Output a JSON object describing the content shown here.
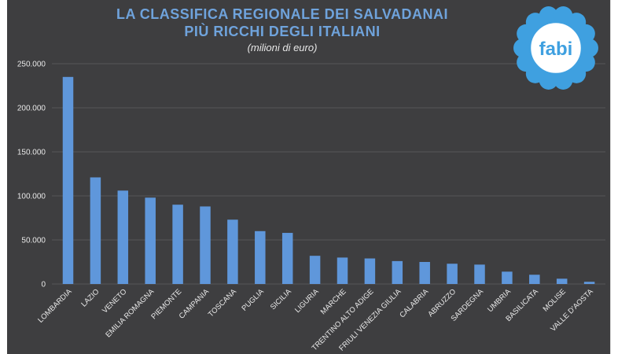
{
  "header": {
    "title_line1": "LA CLASSIFICA REGIONALE DEI SALVADANAI",
    "title_line2": "PIÙ RICCHI DEGLI ITALIANI",
    "subtitle": "(milioni di euro)"
  },
  "logo": {
    "text": "fabi",
    "color": "#3fa0e0"
  },
  "colors": {
    "background": "#3e3e40",
    "bar": "#5f97db",
    "title": "#6fa3dc",
    "text": "#e8e8e8",
    "grid": "#555558"
  },
  "chart_data": {
    "type": "bar",
    "title": "LA CLASSIFICA REGIONALE DEI SALVADANAI PIÙ RICCHI DEGLI ITALIANI",
    "subtitle": "(milioni di euro)",
    "xlabel": "",
    "ylabel": "",
    "ylim": [
      0,
      250000
    ],
    "yticks": [
      0,
      50000,
      100000,
      150000,
      200000,
      250000
    ],
    "ytick_labels": [
      "0",
      "50.000",
      "100.000",
      "150.000",
      "200.000",
      "250.000"
    ],
    "grid": true,
    "legend": "none",
    "categories": [
      "LOMBARDIA",
      "LAZIO",
      "VENETO",
      "EMILIA ROMAGNA",
      "PIEMONTE",
      "CAMPANIA",
      "TOSCANA",
      "PUGLIA",
      "SICILIA",
      "LIGURIA",
      "MARCHE",
      "TRENTINO ALTO ADIGE",
      "FRIULI VENEZIA GIULIA",
      "CALABRIA",
      "ABRUZZO",
      "SARDEGNA",
      "UMBRIA",
      "BASILICATA",
      "MOLISE",
      "VALLE D'AOSTA"
    ],
    "values": [
      235000,
      121000,
      106000,
      98000,
      90000,
      88000,
      73000,
      60000,
      58000,
      32000,
      30000,
      29000,
      26000,
      25000,
      23000,
      22000,
      14000,
      10500,
      6000,
      2500
    ]
  }
}
